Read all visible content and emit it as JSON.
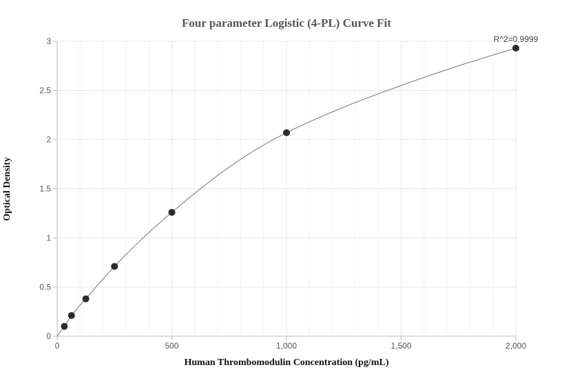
{
  "chart_data": {
    "type": "scatter",
    "title": "Four parameter Logistic (4-PL) Curve Fit",
    "xlabel": "Human Thrombomodulin Concentration (pg/mL)",
    "ylabel": "Optical Density",
    "xlim": [
      0,
      2000
    ],
    "ylim": [
      0,
      3
    ],
    "x_ticks": [
      0,
      500,
      1000,
      1500,
      2000
    ],
    "x_tick_labels": [
      "0",
      "500",
      "1,000",
      "1,500",
      "2,000"
    ],
    "y_ticks": [
      0,
      0.5,
      1,
      1.5,
      2,
      2.5,
      3
    ],
    "y_tick_labels": [
      "0",
      "0.5",
      "1",
      "1.5",
      "2",
      "2.5",
      "3"
    ],
    "grid": true,
    "series": [
      {
        "x": [
          31.25,
          62.5,
          125,
          250,
          500,
          1000,
          2000
        ],
        "y": [
          0.1,
          0.21,
          0.38,
          0.71,
          1.26,
          2.07,
          2.93
        ]
      }
    ],
    "fit_curve": {
      "x": [
        0,
        31.25,
        62.5,
        125,
        250,
        375,
        500,
        625,
        750,
        875,
        1000,
        1250,
        1500,
        1750,
        2000
      ],
      "y": [
        0.0,
        0.1,
        0.21,
        0.38,
        0.71,
        1.0,
        1.26,
        1.5,
        1.72,
        1.91,
        2.07,
        2.33,
        2.55,
        2.75,
        2.93
      ]
    },
    "annotation": "R^2=0.9999",
    "colors": {
      "point": "#2b2b2b",
      "curve": "#888888",
      "grid": "#e6e6e6"
    }
  }
}
